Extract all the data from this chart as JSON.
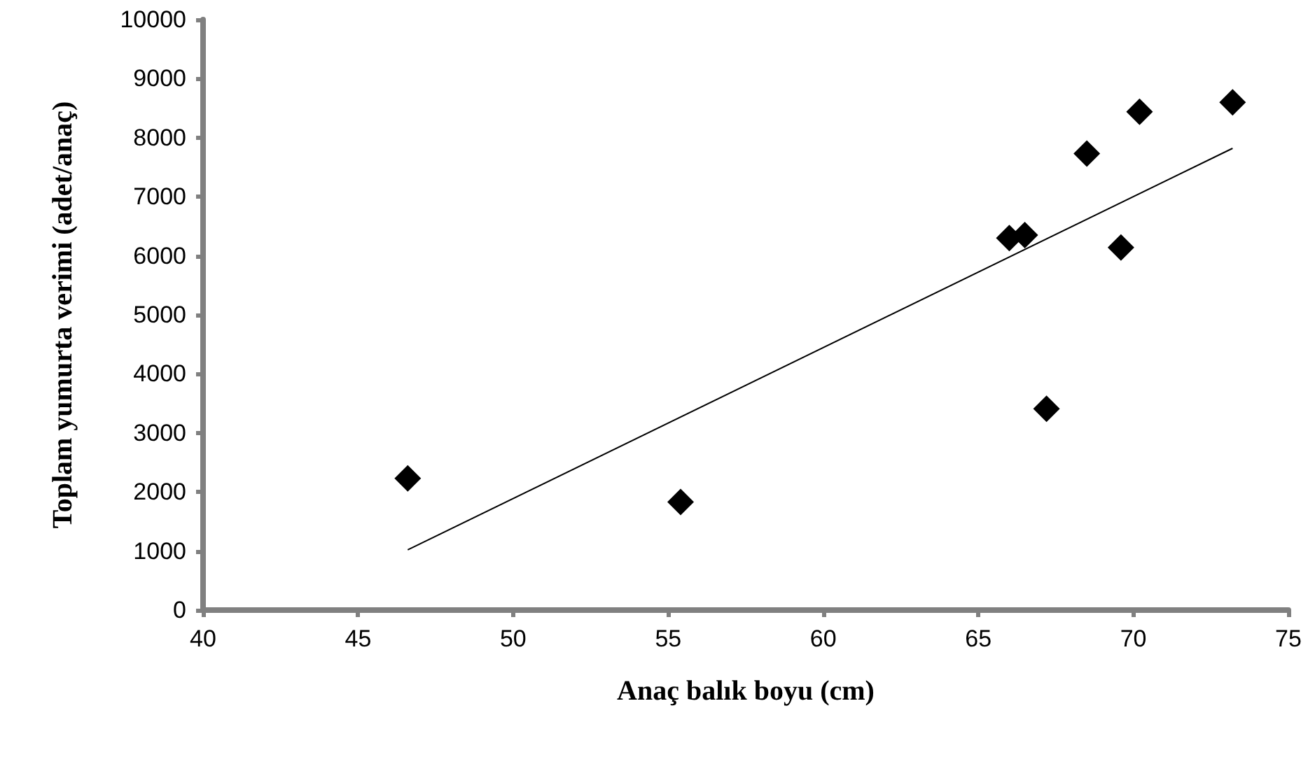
{
  "chart_data": {
    "type": "scatter",
    "xlabel": "Anaç balık boyu (cm)",
    "ylabel": "Toplam yumurta verimi (adet/anaç)",
    "series": [
      {
        "color": "#000000",
        "marker": "diamond",
        "x": [
          46.6,
          55.4,
          66.0,
          66.5,
          67.2,
          68.5,
          69.6,
          70.2,
          73.2
        ],
        "values": [
          2230,
          1830,
          6300,
          6350,
          3410,
          7730,
          6140,
          8440,
          8600
        ]
      },
      {
        "type": "line",
        "color": "#000000",
        "x": [
          46.6,
          73.2
        ],
        "values": [
          1020,
          7820
        ]
      }
    ],
    "xlim": [
      40,
      75
    ],
    "xticks": [
      40,
      45,
      50,
      55,
      60,
      65,
      70,
      75
    ],
    "ylim": [
      0,
      10000
    ],
    "yticks": [
      0,
      1000,
      2000,
      3000,
      4000,
      5000,
      6000,
      7000,
      8000,
      9000,
      10000
    ],
    "grid": false
  }
}
